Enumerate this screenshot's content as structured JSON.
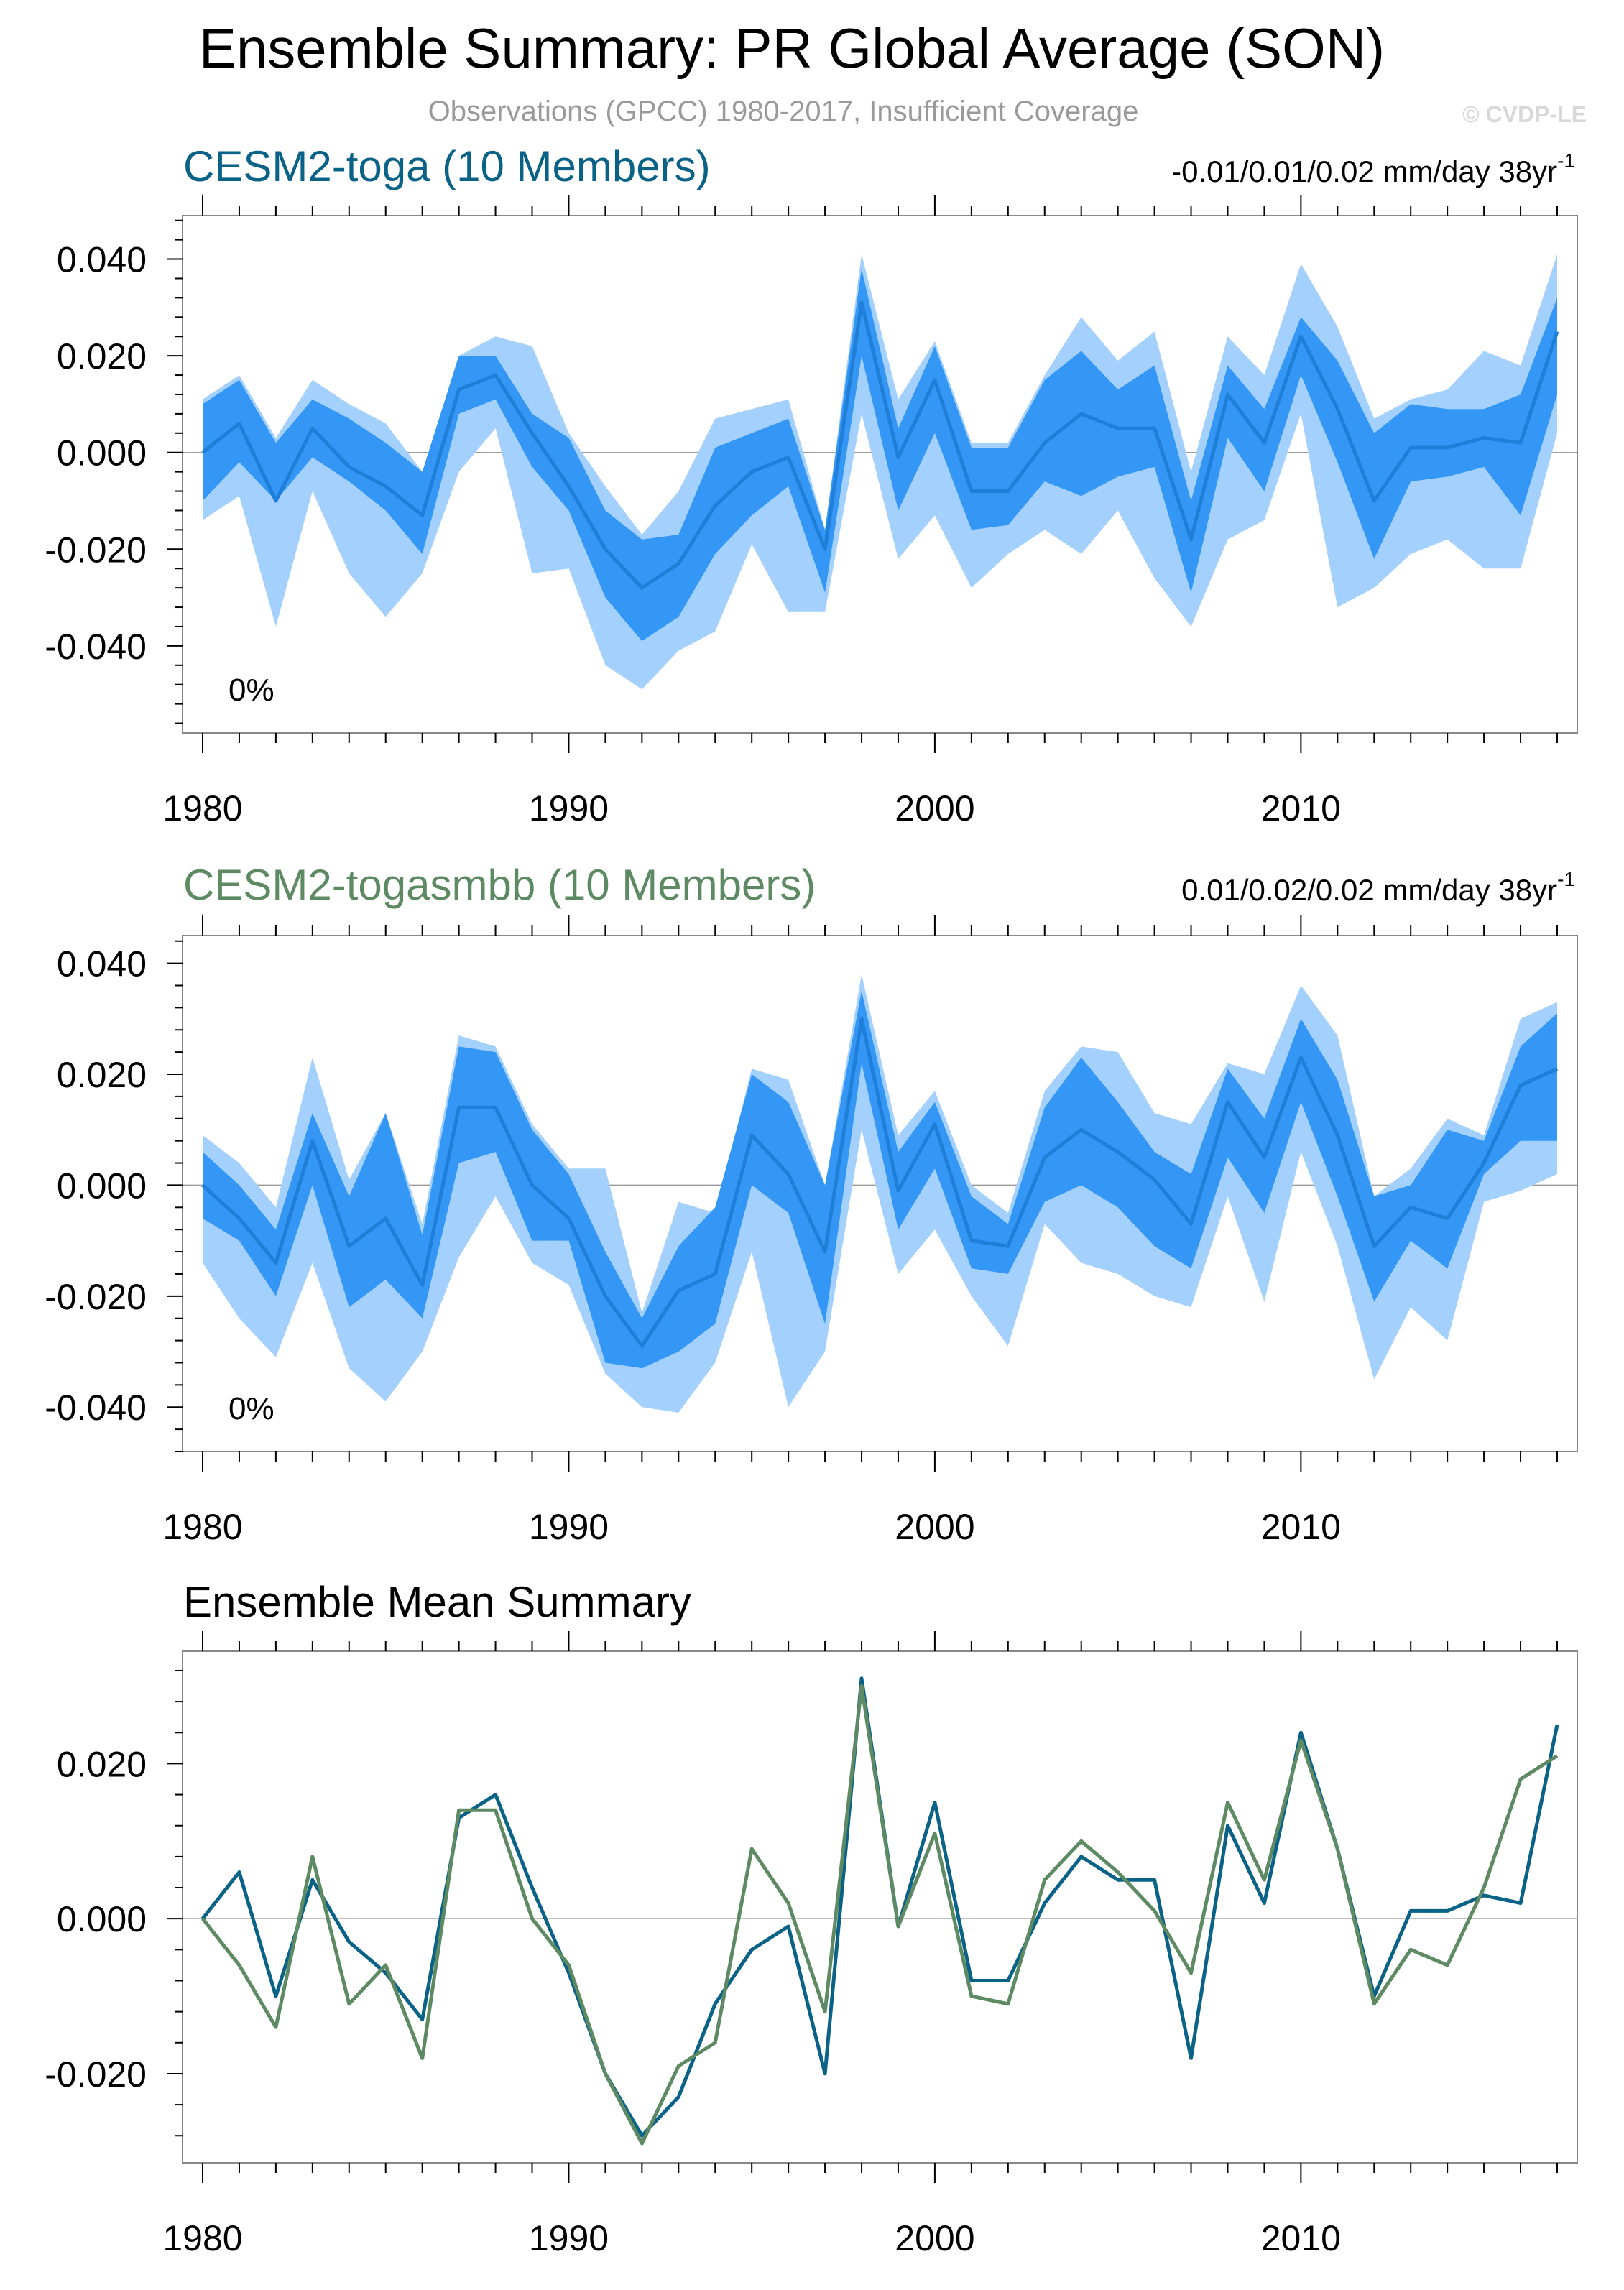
{
  "title": "Ensemble Summary: PR Global Average (SON)",
  "subtitle": "Observations (GPCC) 1980-2017, Insufficient Coverage",
  "watermark": "© CVDP-LE",
  "colors": {
    "toga": "#0a6287",
    "togasmbb": "#5e8a63",
    "band_outer": "#a3d0fc",
    "band_inner": "#3497f6",
    "mean_line": "#1f7fd8",
    "frame": "#888888",
    "zero_line": "#9a9a9a"
  },
  "panels": [
    {
      "title": "CESM2-toga (10 Members)",
      "trend": "-0.01/0.01/0.02 mm/day 38yr",
      "trend_sup": "-1",
      "pct": "0%"
    },
    {
      "title": "CESM2-togasmbb (10 Members)",
      "trend": "0.01/0.02/0.02 mm/day 38yr",
      "trend_sup": "-1",
      "pct": "0%"
    },
    {
      "title": "Ensemble Mean Summary"
    }
  ],
  "chart_data": [
    {
      "type": "area",
      "title": "CESM2-toga (10 Members)",
      "x": [
        1980,
        1981,
        1982,
        1983,
        1984,
        1985,
        1986,
        1987,
        1988,
        1989,
        1990,
        1991,
        1992,
        1993,
        1994,
        1995,
        1996,
        1997,
        1998,
        1999,
        2000,
        2001,
        2002,
        2003,
        2004,
        2005,
        2006,
        2007,
        2008,
        2009,
        2010,
        2011,
        2012,
        2013,
        2014,
        2015,
        2016,
        2017
      ],
      "series": [
        {
          "name": "ensemble mean",
          "values": [
            0.0,
            0.006,
            -0.01,
            0.005,
            -0.003,
            -0.007,
            -0.013,
            0.013,
            0.016,
            0.004,
            -0.007,
            -0.02,
            -0.028,
            -0.023,
            -0.011,
            -0.004,
            -0.001,
            -0.02,
            0.031,
            -0.001,
            0.015,
            -0.008,
            -0.008,
            0.002,
            0.008,
            0.005,
            0.005,
            -0.018,
            0.012,
            0.002,
            0.024,
            0.009,
            -0.01,
            0.001,
            0.001,
            0.003,
            0.002,
            0.025
          ]
        },
        {
          "name": "min",
          "values": [
            -0.014,
            -0.009,
            -0.036,
            -0.008,
            -0.025,
            -0.034,
            -0.025,
            -0.004,
            0.005,
            -0.025,
            -0.024,
            -0.044,
            -0.049,
            -0.041,
            -0.037,
            -0.019,
            -0.033,
            -0.033,
            0.008,
            -0.022,
            -0.013,
            -0.028,
            -0.021,
            -0.016,
            -0.021,
            -0.012,
            -0.026,
            -0.036,
            -0.018,
            -0.014,
            0.008,
            -0.032,
            -0.028,
            -0.021,
            -0.018,
            -0.024,
            -0.024,
            0.004
          ]
        },
        {
          "name": "10th percentile",
          "values": [
            -0.01,
            -0.002,
            -0.01,
            -0.001,
            -0.006,
            -0.012,
            -0.021,
            0.008,
            0.011,
            -0.003,
            -0.012,
            -0.03,
            -0.039,
            -0.034,
            -0.021,
            -0.013,
            -0.007,
            -0.029,
            0.02,
            -0.012,
            0.004,
            -0.016,
            -0.015,
            -0.006,
            -0.009,
            -0.005,
            -0.003,
            -0.029,
            0.003,
            -0.008,
            0.016,
            -0.002,
            -0.022,
            -0.006,
            -0.005,
            -0.003,
            -0.013,
            0.012
          ]
        },
        {
          "name": "90th percentile",
          "values": [
            0.01,
            0.015,
            0.002,
            0.011,
            0.007,
            0.002,
            -0.004,
            0.02,
            0.02,
            0.008,
            0.003,
            -0.012,
            -0.018,
            -0.017,
            0.001,
            0.004,
            0.007,
            -0.016,
            0.038,
            0.005,
            0.022,
            0.001,
            0.001,
            0.015,
            0.021,
            0.013,
            0.018,
            -0.01,
            0.018,
            0.009,
            0.028,
            0.019,
            0.004,
            0.01,
            0.009,
            0.009,
            0.012,
            0.032
          ]
        },
        {
          "name": "max",
          "values": [
            0.011,
            0.016,
            0.003,
            0.015,
            0.01,
            0.006,
            -0.004,
            0.02,
            0.024,
            0.022,
            0.004,
            -0.007,
            -0.017,
            -0.008,
            0.007,
            0.009,
            0.011,
            -0.016,
            0.041,
            0.011,
            0.023,
            0.002,
            0.002,
            0.016,
            0.028,
            0.019,
            0.025,
            -0.004,
            0.024,
            0.016,
            0.039,
            0.026,
            0.007,
            0.011,
            0.013,
            0.021,
            0.018,
            0.041
          ]
        }
      ],
      "xlim": [
        1980,
        2017
      ],
      "ylim": [
        -0.058,
        0.049
      ],
      "yticks": [
        -0.04,
        -0.02,
        0.0,
        0.02,
        0.04
      ],
      "ytick_labels": [
        "-0.040",
        "-0.020",
        "0.000",
        "0.020",
        "0.040"
      ],
      "xticks": [
        1980,
        1990,
        2000,
        2010
      ],
      "xtick_labels": [
        "1980",
        "1990",
        "2000",
        "2010"
      ]
    },
    {
      "type": "area",
      "title": "CESM2-togasmbb (10 Members)",
      "x": [
        1980,
        1981,
        1982,
        1983,
        1984,
        1985,
        1986,
        1987,
        1988,
        1989,
        1990,
        1991,
        1992,
        1993,
        1994,
        1995,
        1996,
        1997,
        1998,
        1999,
        2000,
        2001,
        2002,
        2003,
        2004,
        2005,
        2006,
        2007,
        2008,
        2009,
        2010,
        2011,
        2012,
        2013,
        2014,
        2015,
        2016,
        2017
      ],
      "series": [
        {
          "name": "ensemble mean",
          "values": [
            0.0,
            -0.006,
            -0.014,
            0.008,
            -0.011,
            -0.006,
            -0.018,
            0.014,
            0.014,
            0.0,
            -0.006,
            -0.02,
            -0.029,
            -0.019,
            -0.016,
            0.009,
            0.002,
            -0.012,
            0.03,
            -0.001,
            0.011,
            -0.01,
            -0.011,
            0.005,
            0.01,
            0.006,
            0.001,
            -0.007,
            0.015,
            0.005,
            0.023,
            0.009,
            -0.011,
            -0.004,
            -0.006,
            0.004,
            0.018,
            0.021
          ]
        },
        {
          "name": "min",
          "values": [
            -0.014,
            -0.024,
            -0.031,
            -0.014,
            -0.033,
            -0.039,
            -0.03,
            -0.013,
            -0.002,
            -0.014,
            -0.018,
            -0.034,
            -0.04,
            -0.041,
            -0.032,
            -0.012,
            -0.04,
            -0.03,
            0.01,
            -0.016,
            -0.008,
            -0.02,
            -0.029,
            -0.007,
            -0.014,
            -0.016,
            -0.02,
            -0.022,
            -0.002,
            -0.021,
            0.006,
            -0.011,
            -0.035,
            -0.022,
            -0.028,
            -0.003,
            -0.001,
            0.002
          ]
        },
        {
          "name": "10th percentile",
          "values": [
            -0.006,
            -0.01,
            -0.02,
            0.0,
            -0.022,
            -0.017,
            -0.024,
            0.004,
            0.006,
            -0.01,
            -0.01,
            -0.032,
            -0.033,
            -0.03,
            -0.025,
            0.0,
            -0.005,
            -0.025,
            0.022,
            -0.008,
            0.003,
            -0.015,
            -0.016,
            -0.003,
            0.0,
            -0.004,
            -0.011,
            -0.015,
            0.005,
            -0.005,
            0.015,
            -0.002,
            -0.021,
            -0.01,
            -0.015,
            0.002,
            0.008,
            0.008
          ]
        },
        {
          "name": "90th percentile",
          "values": [
            0.006,
            0.0,
            -0.008,
            0.013,
            -0.002,
            0.013,
            -0.009,
            0.025,
            0.024,
            0.01,
            0.002,
            -0.012,
            -0.024,
            -0.011,
            -0.004,
            0.02,
            0.015,
            0.0,
            0.035,
            0.006,
            0.015,
            -0.002,
            -0.007,
            0.014,
            0.023,
            0.015,
            0.006,
            0.002,
            0.021,
            0.012,
            0.03,
            0.019,
            -0.002,
            0.0,
            0.01,
            0.008,
            0.025,
            0.031
          ]
        },
        {
          "name": "max",
          "values": [
            0.009,
            0.004,
            -0.004,
            0.023,
            0.001,
            0.013,
            -0.007,
            0.027,
            0.025,
            0.011,
            0.003,
            0.003,
            -0.023,
            -0.003,
            -0.005,
            0.021,
            0.019,
            0.0,
            0.038,
            0.009,
            0.017,
            0.0,
            -0.005,
            0.017,
            0.025,
            0.024,
            0.013,
            0.011,
            0.022,
            0.02,
            0.036,
            0.027,
            -0.002,
            0.003,
            0.012,
            0.009,
            0.03,
            0.033
          ]
        }
      ],
      "xlim": [
        1980,
        2017
      ],
      "ylim": [
        -0.048,
        0.045
      ],
      "yticks": [
        -0.04,
        -0.02,
        0.0,
        0.02,
        0.04
      ],
      "ytick_labels": [
        "-0.040",
        "-0.020",
        "0.000",
        "0.020",
        "0.040"
      ],
      "xticks": [
        1980,
        1990,
        2000,
        2010
      ],
      "xtick_labels": [
        "1980",
        "1990",
        "2000",
        "2010"
      ]
    },
    {
      "type": "line",
      "title": "Ensemble Mean Summary",
      "x": [
        1980,
        1981,
        1982,
        1983,
        1984,
        1985,
        1986,
        1987,
        1988,
        1989,
        1990,
        1991,
        1992,
        1993,
        1994,
        1995,
        1996,
        1997,
        1998,
        1999,
        2000,
        2001,
        2002,
        2003,
        2004,
        2005,
        2006,
        2007,
        2008,
        2009,
        2010,
        2011,
        2012,
        2013,
        2014,
        2015,
        2016,
        2017
      ],
      "series": [
        {
          "name": "CESM2-toga",
          "color": "#0a6287",
          "values": [
            0.0,
            0.006,
            -0.01,
            0.005,
            -0.003,
            -0.007,
            -0.013,
            0.013,
            0.016,
            0.004,
            -0.007,
            -0.02,
            -0.028,
            -0.023,
            -0.011,
            -0.004,
            -0.001,
            -0.02,
            0.031,
            -0.001,
            0.015,
            -0.008,
            -0.008,
            0.002,
            0.008,
            0.005,
            0.005,
            -0.018,
            0.012,
            0.002,
            0.024,
            0.009,
            -0.01,
            0.001,
            0.001,
            0.003,
            0.002,
            0.025
          ]
        },
        {
          "name": "CESM2-togasmbb",
          "color": "#5e8a63",
          "values": [
            0.0,
            -0.006,
            -0.014,
            0.008,
            -0.011,
            -0.006,
            -0.018,
            0.014,
            0.014,
            0.0,
            -0.006,
            -0.02,
            -0.029,
            -0.019,
            -0.016,
            0.009,
            0.002,
            -0.012,
            0.03,
            -0.001,
            0.011,
            -0.01,
            -0.011,
            0.005,
            0.01,
            0.006,
            0.001,
            -0.007,
            0.015,
            0.005,
            0.023,
            0.009,
            -0.011,
            -0.004,
            -0.006,
            0.004,
            0.018,
            0.021
          ]
        }
      ],
      "xlim": [
        1980,
        2017
      ],
      "ylim": [
        -0.0315,
        0.0345
      ],
      "yticks": [
        -0.02,
        0.0,
        0.02
      ],
      "ytick_labels": [
        "-0.020",
        "0.000",
        "0.020"
      ],
      "xticks": [
        1980,
        1990,
        2000,
        2010
      ],
      "xtick_labels": [
        "1980",
        "1990",
        "2000",
        "2010"
      ]
    }
  ]
}
